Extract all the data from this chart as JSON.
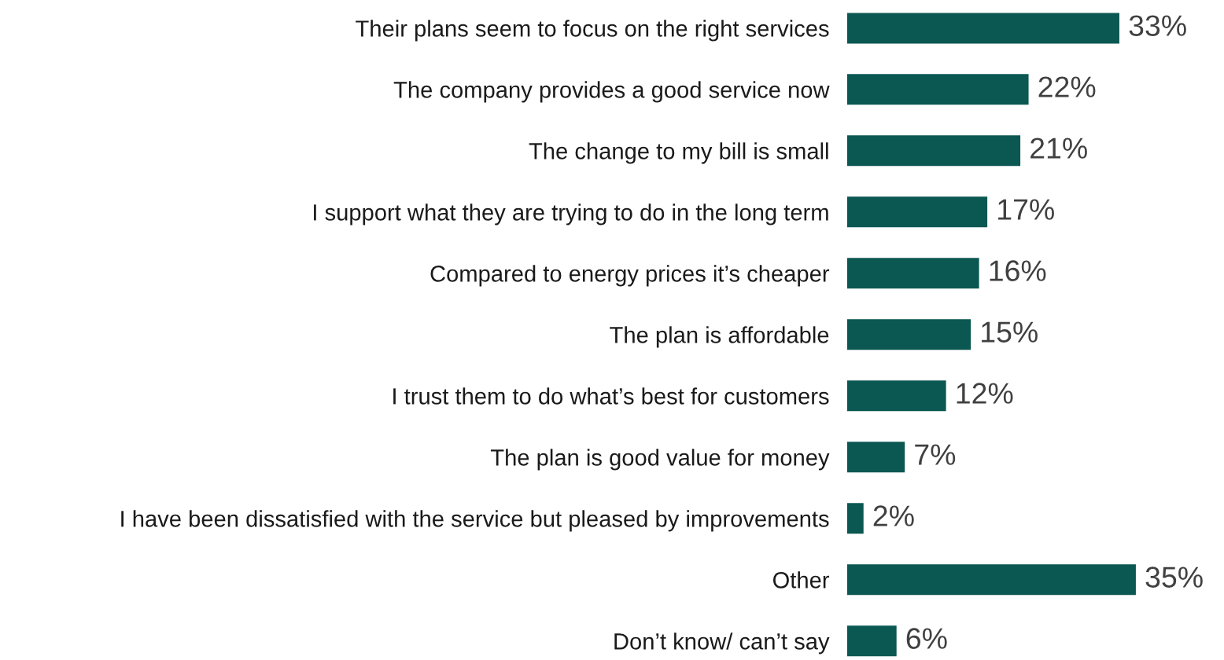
{
  "chart_data": {
    "type": "bar",
    "orientation": "horizontal",
    "categories": [
      "Their plans seem to focus on the right services",
      "The company provides a good service now",
      "The change to my bill is small",
      "I support what they are trying to do in the long term",
      "Compared to energy prices it’s cheaper",
      "The plan is affordable",
      "I trust them to do what’s best for customers",
      "The plan is good value for money",
      "I have been dissatisfied with the service but pleased by improvements",
      "Other",
      "Don’t know/ can’t say"
    ],
    "values": [
      33,
      22,
      21,
      17,
      16,
      15,
      12,
      7,
      2,
      35,
      6
    ],
    "value_labels": [
      "33%",
      "22%",
      "21%",
      "17%",
      "16%",
      "15%",
      "12%",
      "7%",
      "2%",
      "35%",
      "6%"
    ],
    "color": "#0b5752",
    "grid": false,
    "legend": false
  }
}
